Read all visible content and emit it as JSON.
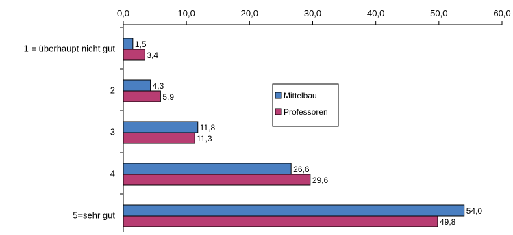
{
  "chart_data": {
    "type": "bar",
    "orientation": "horizontal",
    "title": "",
    "xlabel": "",
    "ylabel": "",
    "xlim": [
      0,
      60
    ],
    "x_ticks": [
      "0,0",
      "10,0",
      "20,0",
      "30,0",
      "40,0",
      "50,0",
      "60,0"
    ],
    "x_axis_position": "top",
    "categories": [
      "1 = überhaupt nicht gut",
      "2",
      "3",
      "4",
      "5=sehr gut"
    ],
    "series": [
      {
        "name": "Mittelbau",
        "color": "#4a7fc1",
        "values": [
          1.5,
          4.3,
          11.8,
          26.6,
          54.0
        ],
        "labels": [
          "1,5",
          "4,3",
          "11,8",
          "26,6",
          "54,0"
        ]
      },
      {
        "name": "Professoren",
        "color": "#b83d72",
        "values": [
          3.4,
          5.9,
          11.3,
          29.6,
          49.8
        ],
        "labels": [
          "3,4",
          "5,9",
          "11,3",
          "29,6",
          "49,8"
        ]
      }
    ],
    "grid": false,
    "legend_position": "inside-center"
  }
}
